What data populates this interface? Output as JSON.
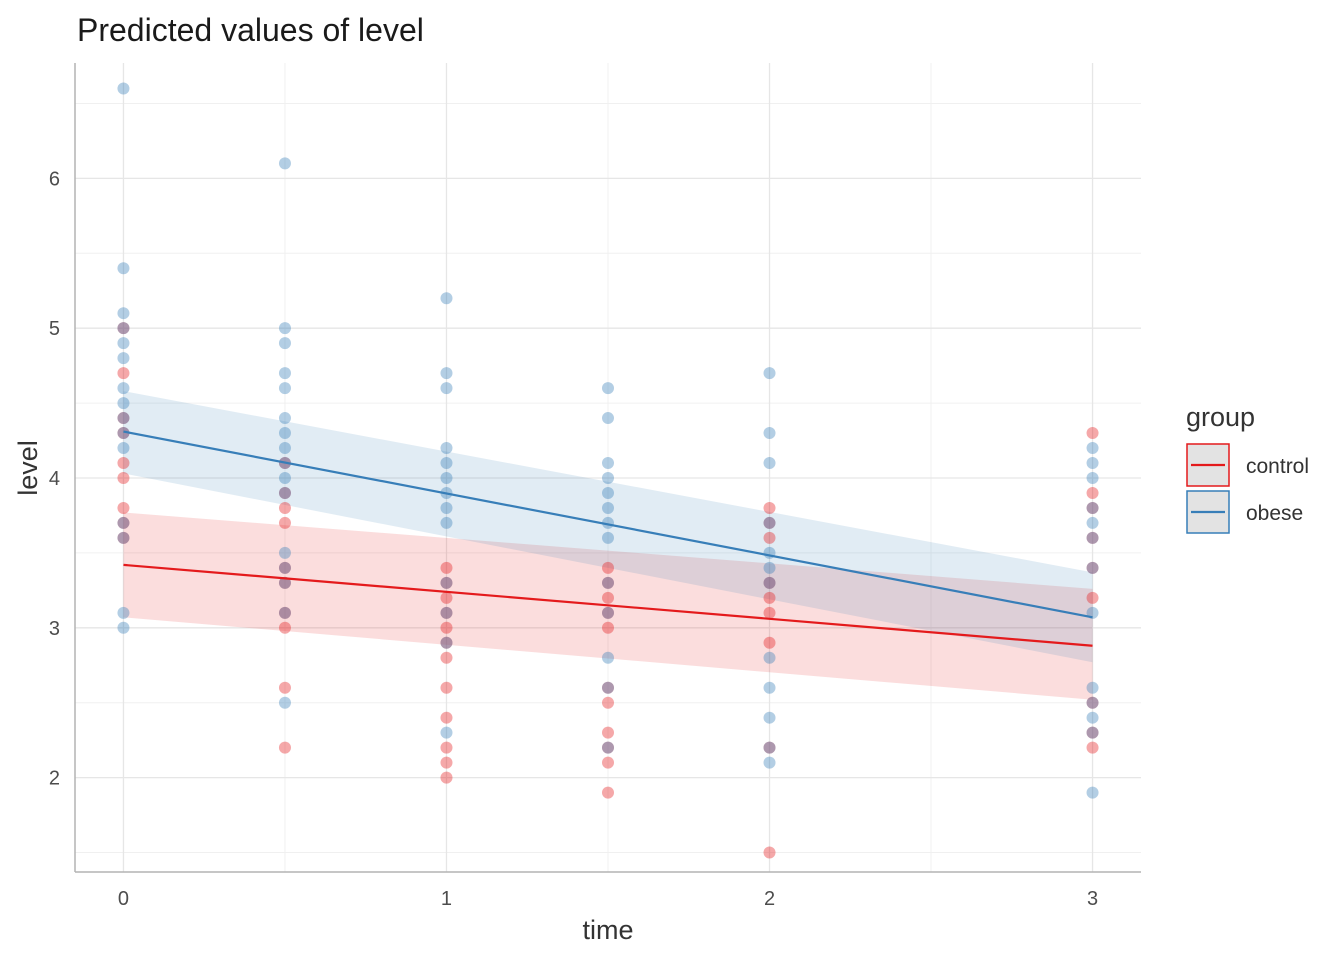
{
  "chart_data": {
    "type": "scatter",
    "title": "Predicted values of level",
    "xlabel": "time",
    "ylabel": "level",
    "xlim": [
      -0.15,
      3.15
    ],
    "ylim": [
      1.37,
      6.77
    ],
    "x_ticks": [
      0,
      1,
      2,
      3
    ],
    "y_ticks": [
      2,
      3,
      4,
      5,
      6
    ],
    "grid": true,
    "legend": {
      "title": "group",
      "position": "right"
    },
    "series": [
      {
        "name": "control",
        "color": "#e41a1c",
        "fit": {
          "x": [
            0,
            3
          ],
          "y": [
            3.42,
            2.88
          ]
        },
        "ci_lower": {
          "x": [
            0,
            3
          ],
          "y": [
            3.07,
            2.52
          ]
        },
        "ci_upper": {
          "x": [
            0,
            3
          ],
          "y": [
            3.77,
            3.26
          ]
        },
        "points": [
          [
            0,
            4.7
          ],
          [
            0,
            4.4
          ],
          [
            0,
            4.3
          ],
          [
            0,
            4.1
          ],
          [
            0,
            4.0
          ],
          [
            0,
            3.8
          ],
          [
            0,
            3.7
          ],
          [
            0,
            3.6
          ],
          [
            0,
            5.0
          ],
          [
            0.5,
            4.1
          ],
          [
            0.5,
            3.9
          ],
          [
            0.5,
            3.8
          ],
          [
            0.5,
            3.7
          ],
          [
            0.5,
            3.4
          ],
          [
            0.5,
            3.3
          ],
          [
            0.5,
            3.1
          ],
          [
            0.5,
            3.0
          ],
          [
            0.5,
            2.6
          ],
          [
            0.5,
            2.2
          ],
          [
            1,
            3.4
          ],
          [
            1,
            3.3
          ],
          [
            1,
            3.2
          ],
          [
            1,
            3.1
          ],
          [
            1,
            3.0
          ],
          [
            1,
            2.9
          ],
          [
            1,
            2.8
          ],
          [
            1,
            2.6
          ],
          [
            1,
            2.4
          ],
          [
            1,
            2.2
          ],
          [
            1,
            2.1
          ],
          [
            1,
            2.0
          ],
          [
            1.5,
            3.4
          ],
          [
            1.5,
            3.3
          ],
          [
            1.5,
            3.2
          ],
          [
            1.5,
            3.1
          ],
          [
            1.5,
            3.0
          ],
          [
            1.5,
            2.6
          ],
          [
            1.5,
            2.5
          ],
          [
            1.5,
            2.3
          ],
          [
            1.5,
            2.2
          ],
          [
            1.5,
            2.1
          ],
          [
            1.5,
            1.9
          ],
          [
            2,
            3.8
          ],
          [
            2,
            3.7
          ],
          [
            2,
            3.6
          ],
          [
            2,
            3.3
          ],
          [
            2,
            3.2
          ],
          [
            2,
            3.1
          ],
          [
            2,
            2.9
          ],
          [
            2,
            2.2
          ],
          [
            2,
            1.5
          ],
          [
            3,
            4.3
          ],
          [
            3,
            3.9
          ],
          [
            3,
            3.8
          ],
          [
            3,
            3.6
          ],
          [
            3,
            3.4
          ],
          [
            3,
            3.2
          ],
          [
            3,
            2.5
          ],
          [
            3,
            2.3
          ],
          [
            3,
            2.2
          ]
        ]
      },
      {
        "name": "obese",
        "color": "#377eb8",
        "fit": {
          "x": [
            0,
            3
          ],
          "y": [
            4.31,
            3.07
          ]
        },
        "ci_lower": {
          "x": [
            0,
            3
          ],
          "y": [
            4.03,
            2.77
          ]
        },
        "ci_upper": {
          "x": [
            0,
            3
          ],
          "y": [
            4.58,
            3.37
          ]
        },
        "points": [
          [
            0,
            6.6
          ],
          [
            0,
            5.4
          ],
          [
            0,
            5.1
          ],
          [
            0,
            5.0
          ],
          [
            0,
            4.9
          ],
          [
            0,
            4.8
          ],
          [
            0,
            4.6
          ],
          [
            0,
            4.5
          ],
          [
            0,
            4.4
          ],
          [
            0,
            4.3
          ],
          [
            0,
            4.2
          ],
          [
            0,
            3.7
          ],
          [
            0,
            3.6
          ],
          [
            0,
            3.1
          ],
          [
            0,
            3.0
          ],
          [
            0.5,
            6.1
          ],
          [
            0.5,
            5.0
          ],
          [
            0.5,
            4.9
          ],
          [
            0.5,
            4.7
          ],
          [
            0.5,
            4.6
          ],
          [
            0.5,
            4.4
          ],
          [
            0.5,
            4.3
          ],
          [
            0.5,
            4.2
          ],
          [
            0.5,
            4.1
          ],
          [
            0.5,
            4.0
          ],
          [
            0.5,
            3.9
          ],
          [
            0.5,
            3.5
          ],
          [
            0.5,
            3.4
          ],
          [
            0.5,
            3.3
          ],
          [
            0.5,
            3.1
          ],
          [
            0.5,
            2.5
          ],
          [
            1,
            5.2
          ],
          [
            1,
            4.7
          ],
          [
            1,
            4.6
          ],
          [
            1,
            4.2
          ],
          [
            1,
            4.1
          ],
          [
            1,
            4.0
          ],
          [
            1,
            3.9
          ],
          [
            1,
            3.8
          ],
          [
            1,
            3.7
          ],
          [
            1,
            3.3
          ],
          [
            1,
            3.1
          ],
          [
            1,
            2.9
          ],
          [
            1,
            2.3
          ],
          [
            1.5,
            4.6
          ],
          [
            1.5,
            4.4
          ],
          [
            1.5,
            4.1
          ],
          [
            1.5,
            4.0
          ],
          [
            1.5,
            3.9
          ],
          [
            1.5,
            3.8
          ],
          [
            1.5,
            3.7
          ],
          [
            1.5,
            3.6
          ],
          [
            1.5,
            3.3
          ],
          [
            1.5,
            3.1
          ],
          [
            1.5,
            2.8
          ],
          [
            1.5,
            2.6
          ],
          [
            1.5,
            2.2
          ],
          [
            2,
            4.7
          ],
          [
            2,
            4.3
          ],
          [
            2,
            4.1
          ],
          [
            2,
            3.7
          ],
          [
            2,
            3.5
          ],
          [
            2,
            3.4
          ],
          [
            2,
            3.3
          ],
          [
            2,
            2.8
          ],
          [
            2,
            2.6
          ],
          [
            2,
            2.4
          ],
          [
            2,
            2.2
          ],
          [
            2,
            2.1
          ],
          [
            3,
            4.2
          ],
          [
            3,
            4.1
          ],
          [
            3,
            4.0
          ],
          [
            3,
            3.8
          ],
          [
            3,
            3.7
          ],
          [
            3,
            3.6
          ],
          [
            3,
            3.4
          ],
          [
            3,
            3.1
          ],
          [
            3,
            2.6
          ],
          [
            3,
            2.5
          ],
          [
            3,
            2.4
          ],
          [
            3,
            2.3
          ],
          [
            3,
            1.9
          ]
        ]
      }
    ]
  }
}
